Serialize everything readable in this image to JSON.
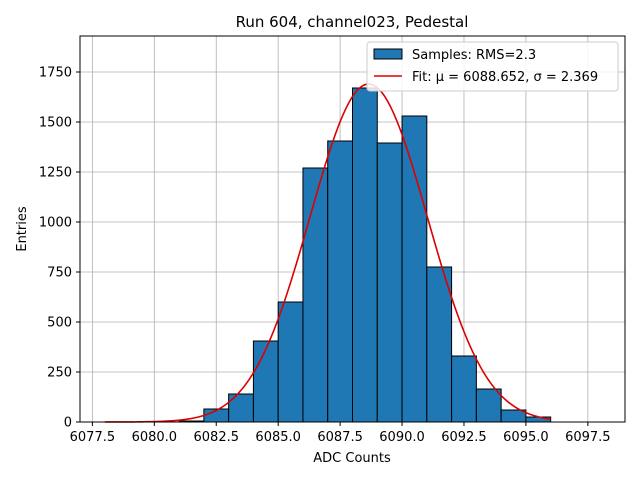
{
  "chart_data": {
    "type": "bar",
    "title": "Run 604, channel023, Pedestal",
    "xlabel": "ADC Counts",
    "ylabel": "Entries",
    "xlim": [
      6077.0,
      6099.0
    ],
    "ylim": [
      0,
      1930
    ],
    "xticks": [
      6077.5,
      6080.0,
      6082.5,
      6085.0,
      6087.5,
      6090.0,
      6092.5,
      6095.0,
      6097.5
    ],
    "xtick_labels": [
      "6077.5",
      "6080.0",
      "6082.5",
      "6085.0",
      "6087.5",
      "6090.0",
      "6092.5",
      "6095.0",
      "6097.5"
    ],
    "yticks": [
      0,
      250,
      500,
      750,
      1000,
      1250,
      1500,
      1750
    ],
    "ytick_labels": [
      "0",
      "250",
      "500",
      "750",
      "1000",
      "1250",
      "1500",
      "1750"
    ],
    "grid": true,
    "legend_position": "top-right",
    "histogram": {
      "name": "Samples: RMS=2.3",
      "color": "#1f77b4",
      "edge_color": "#000000",
      "bin_edges": [
        6081.0,
        6082.0,
        6083.0,
        6084.0,
        6085.0,
        6086.0,
        6087.0,
        6088.0,
        6089.0,
        6090.0,
        6091.0,
        6092.0,
        6093.0,
        6094.0,
        6095.0,
        6096.0
      ],
      "values": [
        5,
        65,
        140,
        405,
        600,
        1270,
        1405,
        1670,
        1395,
        1530,
        775,
        330,
        165,
        60,
        25
      ]
    },
    "fit": {
      "name": "Fit: μ = 6088.652, σ = 2.369",
      "color": "#dd0000",
      "mu": 6088.652,
      "sigma": 2.369,
      "amplitude": 1690,
      "x_range": [
        6078.0,
        6096.0
      ]
    }
  }
}
